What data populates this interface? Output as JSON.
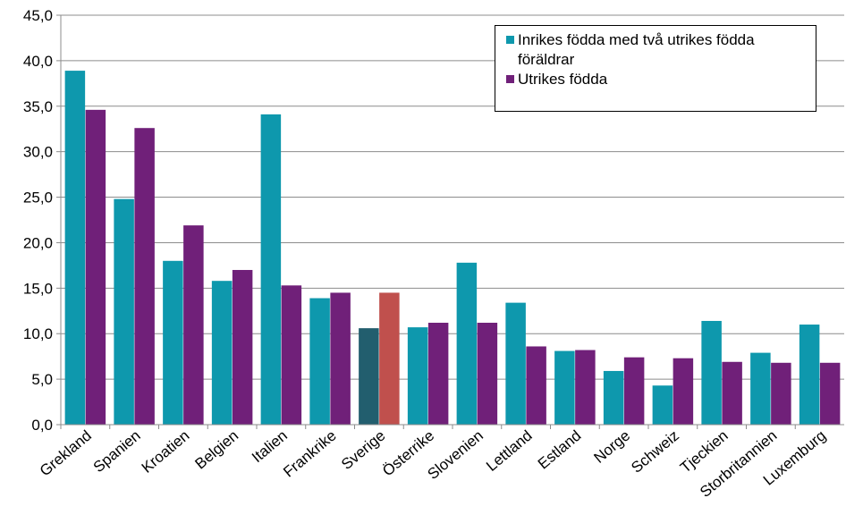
{
  "chart_data": {
    "type": "bar",
    "categories": [
      "Grekland",
      "Spanien",
      "Kroatien",
      "Belgien",
      "Italien",
      "Frankrike",
      "Sverige",
      "Österrike",
      "Slovenien",
      "Lettland",
      "Estland",
      "Norge",
      "Schweiz",
      "Tjeckien",
      "Storbritannien",
      "Luxemburg"
    ],
    "series": [
      {
        "name": "Inrikes födda med två utrikes födda föräldrar",
        "color": "#0e98ad",
        "highlight_color": "#225e6e",
        "values": [
          38.9,
          24.8,
          18.0,
          15.8,
          34.1,
          13.9,
          10.6,
          10.7,
          17.8,
          13.4,
          8.1,
          5.9,
          4.3,
          11.4,
          7.9,
          11.0
        ]
      },
      {
        "name": "Utrikes födda",
        "color": "#702079",
        "highlight_color": "#c0504d",
        "values": [
          34.6,
          32.6,
          21.9,
          17.0,
          15.3,
          14.5,
          14.5,
          11.2,
          11.2,
          8.6,
          8.2,
          7.4,
          7.3,
          6.9,
          6.8,
          6.8
        ]
      }
    ],
    "highlight_category": "Sverige",
    "ylim": [
      0,
      45
    ],
    "yticks": [
      "0,0",
      "5,0",
      "10,0",
      "15,0",
      "20,0",
      "25,0",
      "30,0",
      "35,0",
      "40,0",
      "45,0"
    ],
    "grid": true,
    "legend_position": "top-right",
    "title": "",
    "xlabel": "",
    "ylabel": ""
  },
  "legend": {
    "item1_line1": "Inrikes födda med två utrikes födda",
    "item1_line2": "föräldrar",
    "item2": "Utrikes födda"
  }
}
